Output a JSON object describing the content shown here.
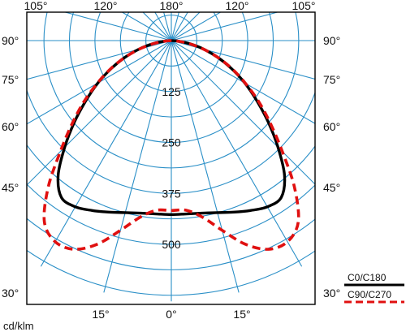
{
  "chart_data": {
    "type": "polar",
    "top_angle_labels": [
      "105°",
      "120°",
      "180°",
      "120°",
      "105°"
    ],
    "left_angle_labels": [
      "90°",
      "75°",
      "60°",
      "45°",
      "30°"
    ],
    "right_angle_labels": [
      "90°",
      "75°",
      "60°",
      "45°",
      "30°"
    ],
    "bottom_angle_labels": [
      "15°",
      "0°",
      "15°"
    ],
    "radial_ticks": [
      125,
      250,
      375,
      500
    ],
    "radial_tick_labels": [
      "125",
      "250",
      "375",
      "500"
    ],
    "unit_label": "cd/klm",
    "grid": true,
    "series": [
      {
        "name": "C0/C180",
        "color": "#000000",
        "dash": "solid",
        "angles": [
          0,
          5,
          10,
          15,
          20,
          25,
          30,
          35,
          40,
          45,
          50,
          55,
          60,
          65,
          70,
          75,
          80,
          85,
          90
        ],
        "values": [
          427,
          427,
          430,
          437,
          448,
          460,
          471,
          470,
          432,
          370,
          310,
          255,
          208,
          163,
          122,
          83,
          48,
          18,
          0
        ]
      },
      {
        "name": "C90/C270",
        "color": "#e01010",
        "dash": "dashed",
        "angles": [
          0,
          5,
          10,
          15,
          20,
          25,
          30,
          35,
          40,
          45,
          50,
          55,
          60,
          65,
          70,
          75,
          80,
          85,
          90
        ],
        "values": [
          417,
          418,
          440,
          482,
          532,
          565,
          570,
          543,
          470,
          385,
          318,
          262,
          210,
          165,
          122,
          82,
          46,
          16,
          0
        ]
      }
    ],
    "legend": {
      "placement": "bottom-right",
      "items": [
        "C0/C180",
        "C90/C270"
      ]
    }
  }
}
